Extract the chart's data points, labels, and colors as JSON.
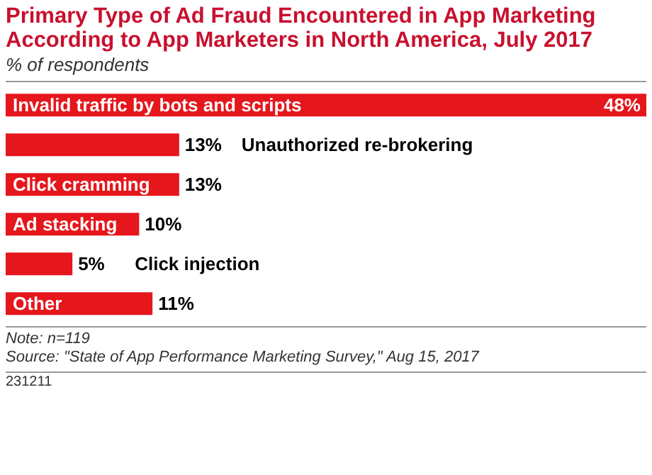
{
  "chart_data": {
    "type": "bar",
    "orientation": "horizontal",
    "title": "Primary Type of Ad Fraud Encountered in App Marketing According to App Marketers in North America, July 2017",
    "subtitle": "% of respondents",
    "categories": [
      "Invalid traffic by bots and scripts",
      "Unauthorized re-brokering",
      "Click cramming",
      "Ad stacking",
      "Click injection",
      "Other"
    ],
    "values": [
      48,
      13,
      13,
      10,
      5,
      11
    ],
    "value_labels": [
      "48%",
      "13%",
      "13%",
      "10%",
      "5%",
      "11%"
    ],
    "color": "#e5161c",
    "annotations": [
      "Note: n=119",
      "Source: \"State of App Performance Marketing Survey,\" Aug 15, 2017",
      "231211"
    ]
  }
}
